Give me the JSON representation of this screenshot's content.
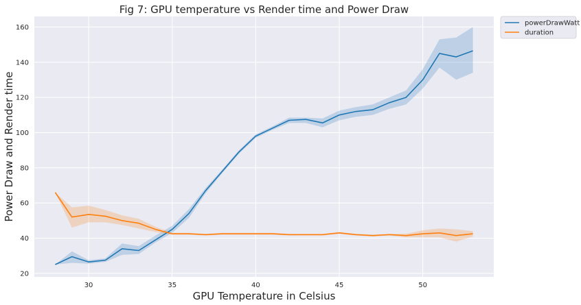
{
  "chart_data": {
    "type": "line",
    "title": "Fig 7: GPU temperature vs Render time and Power Draw",
    "xlabel": "GPU Temperature in Celsius",
    "ylabel": "Power Draw and Render time",
    "xlim": [
      26.75,
      54.25
    ],
    "ylim": [
      18,
      166
    ],
    "xticks": [
      30,
      35,
      40,
      45,
      50
    ],
    "yticks": [
      20,
      40,
      60,
      80,
      100,
      120,
      140,
      160
    ],
    "grid": true,
    "legend_position": "outside-top-right",
    "x": [
      28,
      29,
      30,
      31,
      32,
      33,
      34,
      35,
      36,
      37,
      38,
      39,
      40,
      41,
      42,
      43,
      44,
      45,
      46,
      47,
      48,
      49,
      50,
      51,
      52,
      53
    ],
    "series": [
      {
        "name": "powerDrawWatt",
        "color": "#1f77b4",
        "values": [
          25,
          29.5,
          26.5,
          27.5,
          34,
          33,
          39,
          45,
          54,
          67,
          78,
          89,
          98,
          102.5,
          107,
          107.5,
          105.5,
          110,
          112,
          113,
          117,
          120,
          130,
          145,
          143,
          146.5
        ],
        "ci_low": [
          25,
          26,
          25.5,
          26.5,
          30.5,
          31,
          37.5,
          43,
          51.5,
          65.5,
          77,
          88,
          97,
          101.5,
          105.5,
          105.5,
          103,
          107,
          109,
          110,
          113.5,
          116,
          125,
          137,
          130,
          134
        ],
        "ci_high": [
          25,
          32.5,
          27.5,
          28.5,
          37,
          35.5,
          41.5,
          47,
          56.5,
          68.5,
          79,
          90,
          99,
          103.5,
          108.5,
          108.5,
          108,
          112.5,
          114.5,
          116,
          120,
          124,
          136,
          153,
          154,
          160
        ]
      },
      {
        "name": "duration",
        "color": "#ff7f0e",
        "values": [
          66,
          52,
          53.5,
          52.5,
          50,
          48.5,
          45,
          42.5,
          42.5,
          42,
          42.5,
          42.5,
          42.5,
          42.5,
          42,
          42,
          42,
          43,
          42,
          41.5,
          42,
          41.5,
          42.5,
          43,
          41.5,
          42.5
        ],
        "ci_low": [
          66,
          46,
          49,
          49,
          47.5,
          45.5,
          43.5,
          42,
          42,
          41.5,
          42,
          42,
          42,
          42,
          41.5,
          41.5,
          41.5,
          42.5,
          41.5,
          41,
          41.5,
          40.5,
          40.5,
          40.5,
          38,
          41
        ],
        "ci_high": [
          66,
          57.5,
          58.5,
          56,
          53,
          51,
          46.5,
          43,
          43,
          42.5,
          43,
          43,
          43,
          43,
          42.5,
          42.5,
          42.5,
          43.5,
          42.5,
          42,
          42.5,
          42.5,
          44.5,
          45.5,
          45,
          44
        ]
      }
    ]
  }
}
